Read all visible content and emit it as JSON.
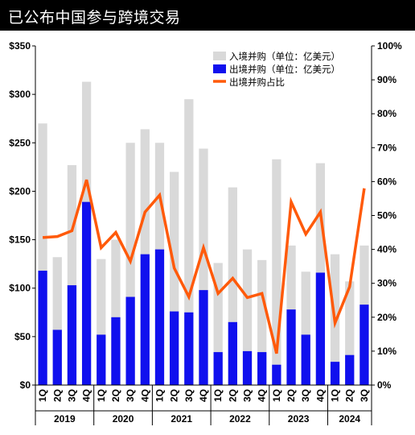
{
  "title": "已公布中国参与跨境交易",
  "chart_data": {
    "type": "bar",
    "categories": [
      "1Q",
      "2Q",
      "3Q",
      "4Q",
      "1Q",
      "2Q",
      "3Q",
      "4Q",
      "1Q",
      "2Q",
      "3Q",
      "4Q",
      "1Q",
      "2Q",
      "3Q",
      "4Q",
      "1Q",
      "2Q",
      "3Q",
      "4Q",
      "1Q",
      "2Q",
      "3Q"
    ],
    "years": [
      {
        "label": "2019",
        "count": 4
      },
      {
        "label": "2020",
        "count": 4
      },
      {
        "label": "2021",
        "count": 4
      },
      {
        "label": "2022",
        "count": 4
      },
      {
        "label": "2023",
        "count": 4
      },
      {
        "label": "2024",
        "count": 3
      }
    ],
    "series": [
      {
        "name": "入境并购（单位：亿美元）",
        "kind": "bar",
        "axis": "left",
        "color": "#d9d9d9",
        "values": [
          270,
          132,
          227,
          313,
          130,
          150,
          250,
          264,
          250,
          220,
          295,
          244,
          126,
          204,
          140,
          129,
          233,
          144,
          117,
          229,
          135,
          107,
          144
        ]
      },
      {
        "name": "出境并购（单位：亿美元）",
        "kind": "bar",
        "axis": "left",
        "color": "#1010ee",
        "values": [
          118,
          57,
          103,
          189,
          52,
          70,
          91,
          135,
          140,
          76,
          75,
          98,
          34,
          65,
          35,
          34,
          21,
          78,
          52,
          116,
          24,
          31,
          83
        ]
      },
      {
        "name": "出境并购占比",
        "kind": "line",
        "axis": "right",
        "color": "#ff5a0a",
        "values": [
          43.5,
          43.8,
          45.5,
          60.5,
          40.5,
          45,
          36.5,
          51,
          56,
          34.5,
          26,
          40.5,
          27,
          31.5,
          25.8,
          27,
          9.3,
          54,
          44.5,
          51,
          18.3,
          29,
          58
        ]
      }
    ],
    "left_axis": {
      "ticks": [
        "$0",
        "$50",
        "$100",
        "$150",
        "$200",
        "$250",
        "$300",
        "$350"
      ],
      "ylim": [
        0,
        350
      ]
    },
    "right_axis": {
      "ticks": [
        "0%",
        "10%",
        "20%",
        "30%",
        "40%",
        "50%",
        "60%",
        "70%",
        "80%",
        "90%",
        "100%"
      ],
      "ylim": [
        0,
        100
      ]
    },
    "legend_position": "top-right"
  }
}
